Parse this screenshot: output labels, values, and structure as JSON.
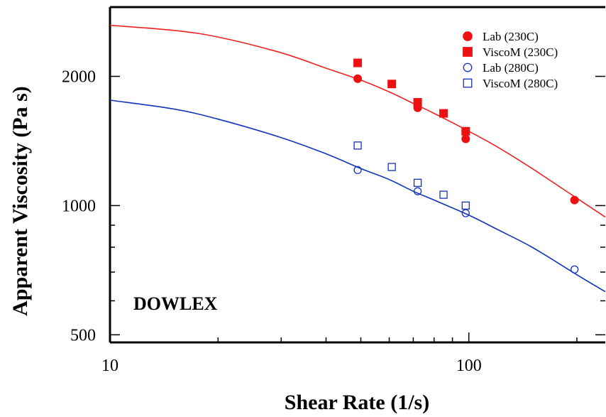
{
  "chart_data": {
    "type": "scatter",
    "title": "",
    "xlabel": "Shear Rate (1/s)",
    "ylabel": "Apparent Viscosity (Pa s)",
    "xscale": "log",
    "yscale": "log",
    "xlim": [
      10,
      240
    ],
    "ylim": [
      480,
      2900
    ],
    "x_tick_labels": [
      "10",
      "100"
    ],
    "y_tick_labels": [
      "500",
      "1000",
      "2000"
    ],
    "x_ticks": [
      10,
      100
    ],
    "y_ticks": [
      500,
      1000,
      2000
    ],
    "annotation": "DOWLEX",
    "legend_position": "top-right",
    "colors": {
      "red": "#ee1111",
      "blue": "#1133bb",
      "red_line": "#ee2222",
      "blue_line": "#1133bb"
    },
    "series": [
      {
        "name": "Lab (230C)",
        "marker": "filled-circle",
        "color": "#ee1111",
        "x": [
          49,
          72,
          98,
          197
        ],
        "y": [
          1975,
          1690,
          1430,
          1030
        ]
      },
      {
        "name": "ViscoM (230C)",
        "marker": "filled-square",
        "color": "#ee1111",
        "x": [
          49,
          61,
          72,
          85,
          98
        ],
        "y": [
          2150,
          1920,
          1740,
          1640,
          1490
        ]
      },
      {
        "name": "Lab (280C)",
        "marker": "open-circle",
        "color": "#1133bb",
        "x": [
          49,
          72,
          98,
          197
        ],
        "y": [
          1210,
          1080,
          960,
          710
        ]
      },
      {
        "name": "ViscoM (280C)",
        "marker": "open-square",
        "color": "#1133bb",
        "x": [
          49,
          61,
          72,
          85,
          98
        ],
        "y": [
          1380,
          1230,
          1130,
          1060,
          1000
        ]
      }
    ],
    "fit_lines": [
      {
        "color": "#ee2222",
        "x": [
          10,
          15,
          20,
          30,
          40,
          50,
          60,
          70,
          80,
          100,
          120,
          150,
          200,
          240
        ],
        "y": [
          2630,
          2560,
          2470,
          2270,
          2090,
          1960,
          1840,
          1730,
          1640,
          1490,
          1370,
          1220,
          1040,
          940
        ]
      },
      {
        "color": "#1133bb",
        "x": [
          10,
          15,
          20,
          30,
          40,
          50,
          60,
          70,
          80,
          100,
          120,
          150,
          200,
          240
        ],
        "y": [
          1760,
          1680,
          1590,
          1440,
          1320,
          1220,
          1150,
          1080,
          1030,
          950,
          880,
          800,
          690,
          630
        ]
      }
    ]
  }
}
